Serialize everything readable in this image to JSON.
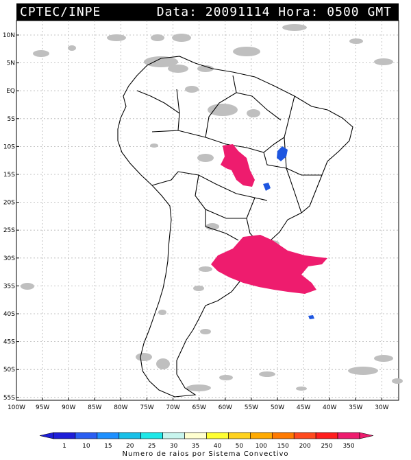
{
  "header": {
    "source": "CPTEC/INPE",
    "datetime": "Data: 20091114 Hora: 0500 GMT"
  },
  "axes": {
    "lat_labels": [
      "10N",
      "5N",
      "EQ",
      "5S",
      "10S",
      "15S",
      "20S",
      "25S",
      "30S",
      "35S",
      "40S",
      "45S",
      "50S",
      "55S"
    ],
    "lon_labels": [
      "100W",
      "95W",
      "90W",
      "85W",
      "80W",
      "75W",
      "70W",
      "65W",
      "60W",
      "55W",
      "50W",
      "45W",
      "40W",
      "35W",
      "30W"
    ]
  },
  "map_layers": {
    "cloud_color": "#bfbfbf",
    "lightning_high_color": "#ee1c6e",
    "lightning_low_color": "#1e56e0",
    "land_outline_color": "#000000"
  },
  "legend": {
    "title": "Numero de raios por Sistema Convectivo",
    "values": [
      "1",
      "10",
      "15",
      "20",
      "25",
      "30",
      "35",
      "40",
      "50",
      "100",
      "150",
      "200",
      "250",
      "350"
    ],
    "colors": [
      "#1e1ed8",
      "#2a5ef2",
      "#1e90ff",
      "#18c0e8",
      "#1ee8e8",
      "#c8f5ee",
      "#ffffd0",
      "#ffff33",
      "#ffd21e",
      "#ffaa00",
      "#ff7a00",
      "#ff4a1e",
      "#ff1e1e",
      "#ee1c6e"
    ]
  }
}
